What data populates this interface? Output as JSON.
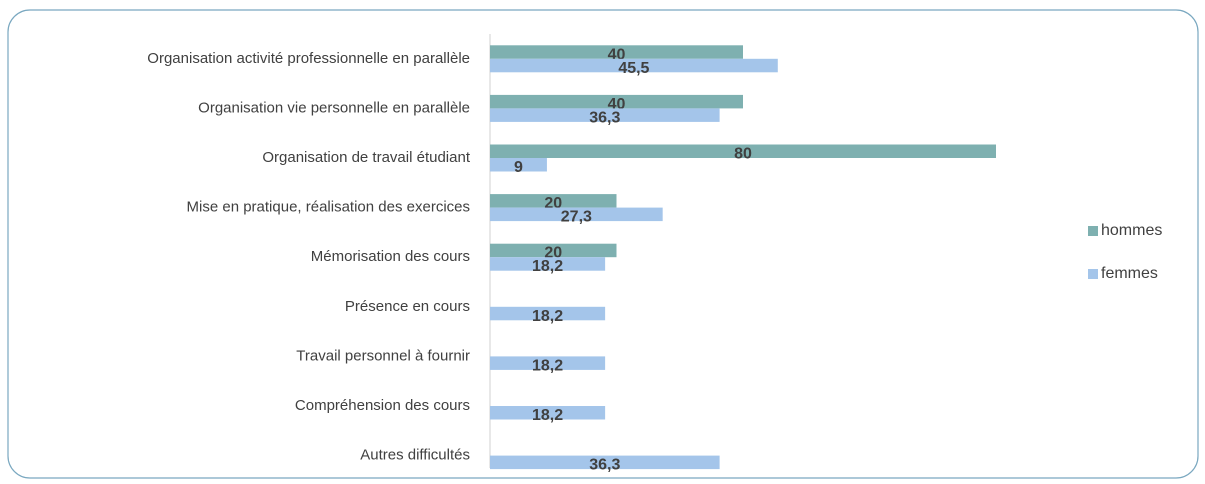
{
  "chart_data": {
    "type": "hbar",
    "categories": [
      "Organisation activité professionnelle en parallèle",
      "Organisation vie personnelle en parallèle",
      "Organisation de travail étudiant",
      "Mise en pratique, réalisation des exercices",
      "Mémorisation des cours",
      "Présence en cours",
      "Travail personnel à fournir",
      "Compréhension des cours",
      "Autres difficultés"
    ],
    "series": [
      {
        "name": "hommes",
        "color": "#7eb0b0",
        "values": [
          40,
          40,
          80,
          20,
          20,
          null,
          null,
          null,
          null
        ]
      },
      {
        "name": "femmes",
        "color": "#a4c5ea",
        "values": [
          45.5,
          36.3,
          9,
          27.3,
          18.2,
          18.2,
          18.2,
          18.2,
          36.3
        ],
        "value_labels": [
          "45,5",
          "36,3",
          "9",
          "27,3",
          "18,2",
          "18,2",
          "18,2",
          "18,2",
          "36,3"
        ]
      }
    ],
    "xlim": [
      0,
      80
    ],
    "legend": "right"
  }
}
